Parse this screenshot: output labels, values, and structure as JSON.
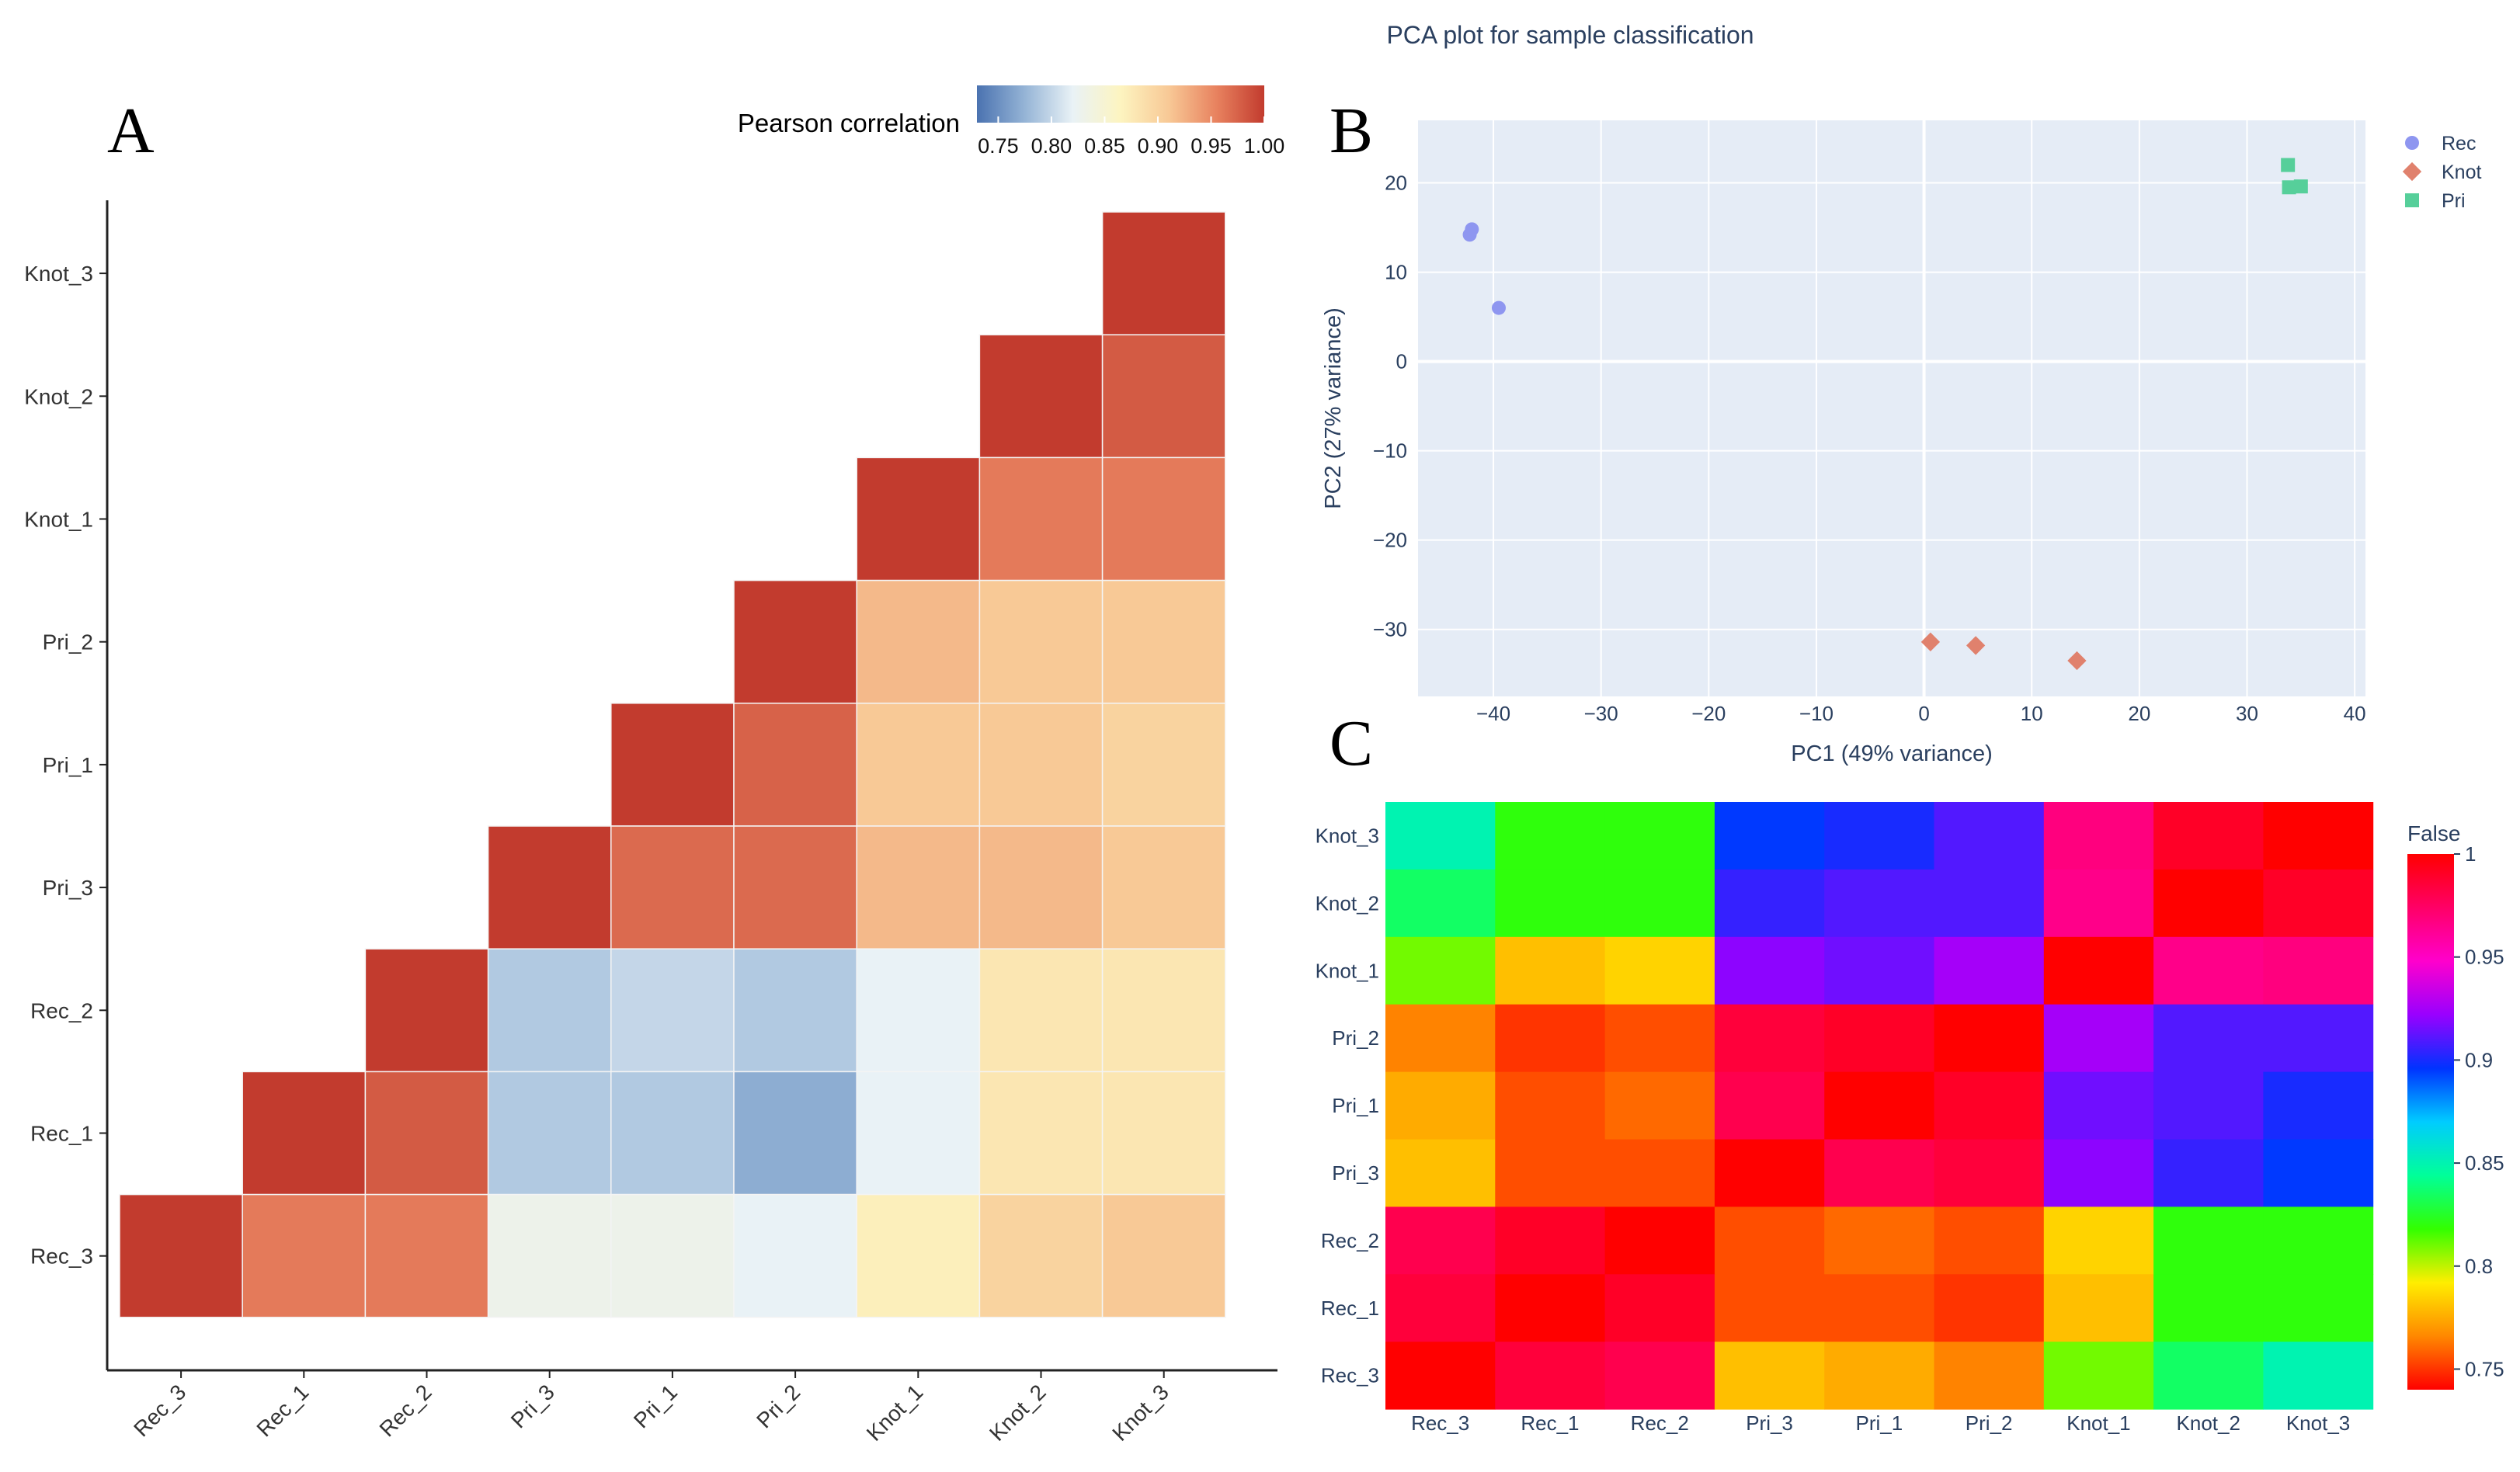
{
  "figure": {
    "top_title": "PCA plot for sample classification",
    "panel_letters": [
      "A",
      "B",
      "C"
    ]
  },
  "chart_data": [
    {
      "panel": "A",
      "type": "heatmap",
      "title": "",
      "layout": "lower-triangle",
      "samples": [
        "Rec_3",
        "Rec_1",
        "Rec_2",
        "Pri_3",
        "Pri_1",
        "Pri_2",
        "Knot_1",
        "Knot_2",
        "Knot_3"
      ],
      "y_order_top_to_bottom": [
        "Knot_3",
        "Knot_2",
        "Knot_1",
        "Pri_2",
        "Pri_1",
        "Pri_3",
        "Rec_2",
        "Rec_1",
        "Rec_3"
      ],
      "colorbar": {
        "title": "Pearson correlation",
        "ticks": [
          "0.75",
          "0.80",
          "0.85",
          "0.90",
          "0.95",
          "1.00"
        ],
        "range": [
          0.73,
          1.0
        ],
        "placement": "top-right",
        "colors": [
          "#4a72b0",
          "#95b4d6",
          "#e9f2f6",
          "#fdf4c0",
          "#f8c996",
          "#e8825f",
          "#c23b2e"
        ]
      },
      "matrix": [
        [
          1.0,
          0.96,
          0.96,
          0.83,
          0.83,
          0.82,
          0.87,
          0.9,
          0.91
        ],
        [
          0.96,
          1.0,
          0.98,
          0.79,
          0.79,
          0.77,
          0.82,
          0.88,
          0.88
        ],
        [
          0.96,
          0.98,
          1.0,
          0.79,
          0.8,
          0.79,
          0.82,
          0.88,
          0.88
        ],
        [
          0.83,
          0.79,
          0.79,
          1.0,
          0.97,
          0.97,
          0.92,
          0.92,
          0.91
        ],
        [
          0.83,
          0.79,
          0.8,
          0.97,
          1.0,
          0.975,
          0.91,
          0.91,
          0.9
        ],
        [
          0.82,
          0.77,
          0.79,
          0.97,
          0.975,
          1.0,
          0.92,
          0.91,
          0.91
        ],
        [
          0.87,
          0.82,
          0.82,
          0.92,
          0.91,
          0.92,
          1.0,
          0.96,
          0.96
        ],
        [
          0.9,
          0.88,
          0.88,
          0.92,
          0.91,
          0.91,
          0.96,
          1.0,
          0.98
        ],
        [
          0.91,
          0.88,
          0.88,
          0.91,
          0.9,
          0.91,
          0.96,
          0.98,
          1.0
        ]
      ]
    },
    {
      "panel": "B",
      "type": "scatter",
      "title": "PCA plot for sample classification",
      "xlabel": "PC1 (49% variance)",
      "ylabel": "PC2 (27% variance)",
      "xlim": [
        -47,
        41
      ],
      "ylim": [
        -37.5,
        27
      ],
      "xticks": [
        -40,
        -30,
        -20,
        -10,
        0,
        10,
        20,
        30,
        40
      ],
      "yticks": [
        -30,
        -20,
        -10,
        0,
        10,
        20
      ],
      "grid": true,
      "legend_placement": "top-right",
      "series": [
        {
          "name": "Rec",
          "symbol": "circle",
          "color": "#8e96f0",
          "points": [
            {
              "x": -42.2,
              "y": 14.2
            },
            {
              "x": -42.0,
              "y": 14.8
            },
            {
              "x": -39.5,
              "y": 6.0
            }
          ]
        },
        {
          "name": "Knot",
          "symbol": "diamond",
          "color": "#e0816d",
          "points": [
            {
              "x": 0.6,
              "y": -31.4
            },
            {
              "x": 4.8,
              "y": -31.8
            },
            {
              "x": 14.2,
              "y": -33.5
            }
          ]
        },
        {
          "name": "Pri",
          "symbol": "square",
          "color": "#56cf9a",
          "points": [
            {
              "x": 33.8,
              "y": 22.0
            },
            {
              "x": 33.9,
              "y": 19.5
            },
            {
              "x": 35.0,
              "y": 19.6
            }
          ]
        }
      ]
    },
    {
      "panel": "C",
      "type": "heatmap",
      "title": "",
      "x_categories": [
        "Rec_3",
        "Rec_1",
        "Rec_2",
        "Pri_3",
        "Pri_1",
        "Pri_2",
        "Knot_1",
        "Knot_2",
        "Knot_3"
      ],
      "y_order_top_to_bottom": [
        "Knot_3",
        "Knot_2",
        "Knot_1",
        "Pri_2",
        "Pri_1",
        "Pri_3",
        "Rec_2",
        "Rec_1",
        "Rec_3"
      ],
      "colorbar": {
        "title": "False",
        "ticks": [
          "1",
          "0.95",
          "0.9",
          "0.85",
          "0.8",
          "0.75"
        ],
        "range": [
          0.74,
          1.0
        ],
        "placement": "right",
        "colors": [
          "#ff0000",
          "#ff8800",
          "#ffee00",
          "#33ff00",
          "#00ff99",
          "#00ccff",
          "#0033ff",
          "#9900ff",
          "#ff00cc",
          "#ff0066",
          "#ff0000"
        ]
      },
      "matrix": [
        [
          1.0,
          0.985,
          0.98,
          0.78,
          0.775,
          0.765,
          0.81,
          0.835,
          0.85
        ],
        [
          0.985,
          1.0,
          0.99,
          0.755,
          0.755,
          0.75,
          0.78,
          0.82,
          0.82
        ],
        [
          0.98,
          0.99,
          1.0,
          0.755,
          0.76,
          0.755,
          0.785,
          0.82,
          0.82
        ],
        [
          0.78,
          0.755,
          0.755,
          1.0,
          0.98,
          0.985,
          0.92,
          0.905,
          0.895
        ],
        [
          0.775,
          0.755,
          0.76,
          0.98,
          1.0,
          0.99,
          0.915,
          0.91,
          0.9
        ],
        [
          0.765,
          0.75,
          0.755,
          0.985,
          0.99,
          1.0,
          0.925,
          0.91,
          0.91
        ],
        [
          0.81,
          0.78,
          0.785,
          0.92,
          0.915,
          0.925,
          1.0,
          0.965,
          0.968
        ],
        [
          0.835,
          0.82,
          0.82,
          0.905,
          0.91,
          0.91,
          0.965,
          1.0,
          0.99
        ],
        [
          0.85,
          0.82,
          0.82,
          0.895,
          0.9,
          0.91,
          0.968,
          0.99,
          1.0
        ]
      ]
    }
  ]
}
